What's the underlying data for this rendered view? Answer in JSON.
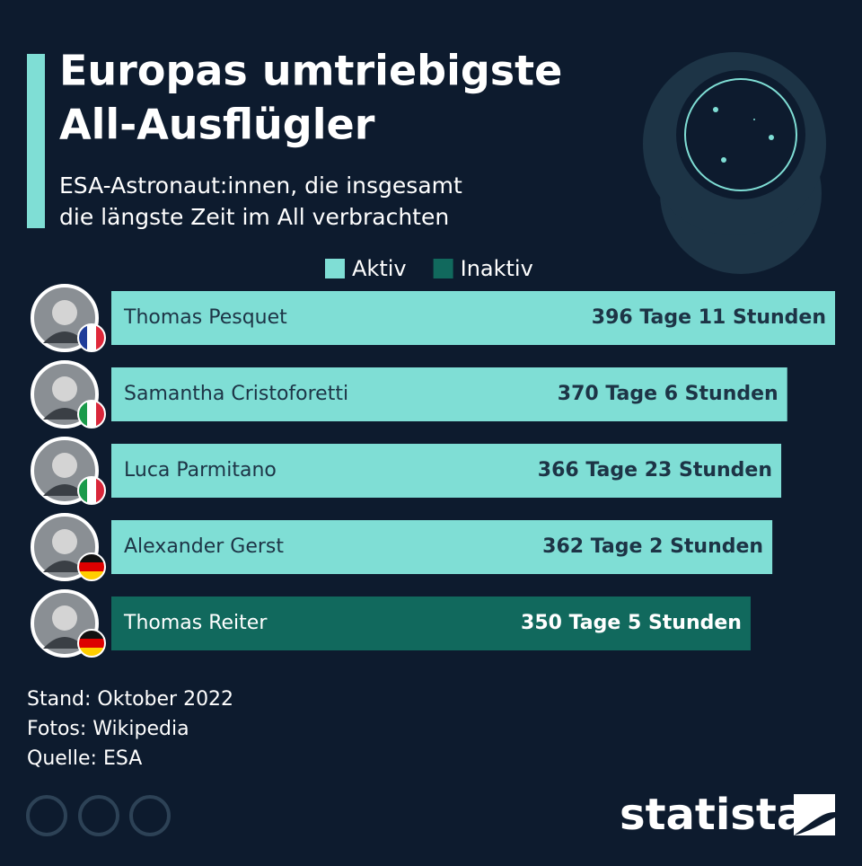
{
  "chart_data": {
    "type": "bar",
    "orientation": "horizontal",
    "title_lines": [
      "Europas umtriebigste",
      "All-Ausflügler"
    ],
    "subtitle_lines": [
      "ESA-Astronaut:innen, die insgesamt",
      "die längste Zeit im All verbrachten"
    ],
    "categories": [
      "Thomas Pesquet",
      "Samantha Cristoforetti",
      "Luca Parmitano",
      "Alexander Gerst",
      "Thomas Reiter"
    ],
    "series": [
      {
        "name": "Aktiv",
        "color": "#7fded5",
        "values": [
          396.46,
          370.25,
          366.96,
          362.08,
          null
        ],
        "value_labels": [
          "396 Tage 11 Stunden",
          "370 Tage 6 Stunden",
          "366 Tage 23 Stunden",
          "362 Tage 2 Stunden",
          null
        ]
      },
      {
        "name": "Inaktiv",
        "color": "#11695d",
        "values": [
          null,
          null,
          null,
          null,
          350.21
        ],
        "value_labels": [
          null,
          null,
          null,
          null,
          "350 Tage 5 Stunden"
        ]
      }
    ],
    "notes": [
      "Stand: Oktober 2022",
      "Fotos: Wikipedia",
      "Quelle: ESA"
    ],
    "brand": "statista"
  }
}
